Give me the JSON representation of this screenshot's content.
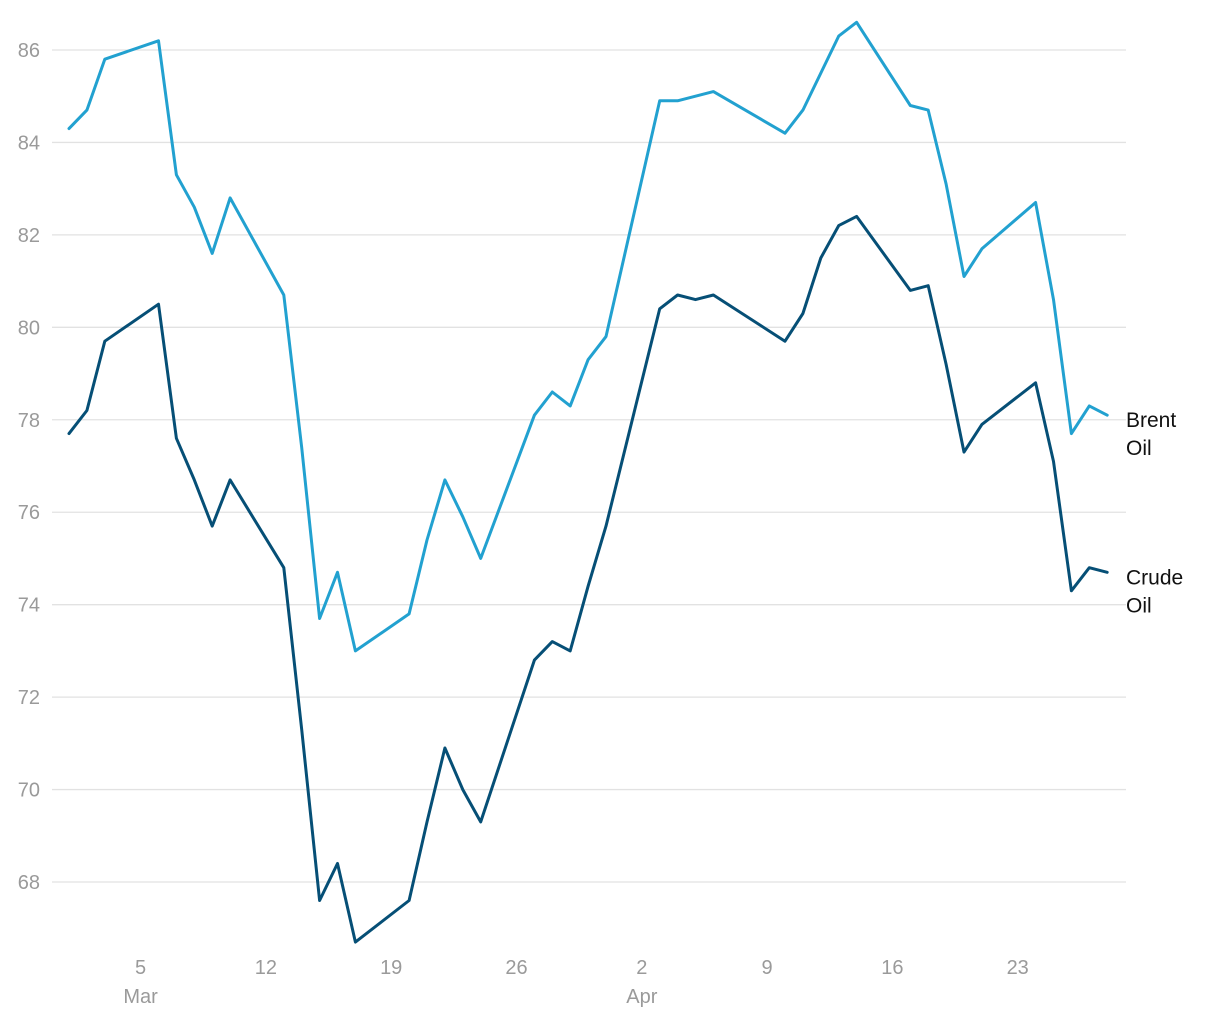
{
  "chart_data": {
    "type": "line",
    "title": "",
    "xlabel": "",
    "ylabel": "",
    "ylim": [
      66.5,
      87.0
    ],
    "y_ticks": [
      68,
      70,
      72,
      74,
      76,
      78,
      80,
      82,
      84,
      86
    ],
    "x_ticks": [
      {
        "date": "03-05",
        "label": "5",
        "sublabel": "Mar"
      },
      {
        "date": "03-12",
        "label": "12",
        "sublabel": ""
      },
      {
        "date": "03-19",
        "label": "19",
        "sublabel": ""
      },
      {
        "date": "03-26",
        "label": "26",
        "sublabel": ""
      },
      {
        "date": "04-02",
        "label": "2",
        "sublabel": "Apr"
      },
      {
        "date": "04-09",
        "label": "9",
        "sublabel": ""
      },
      {
        "date": "04-16",
        "label": "16",
        "sublabel": ""
      },
      {
        "date": "04-23",
        "label": "23",
        "sublabel": ""
      }
    ],
    "grid": true,
    "x": [
      "03-01",
      "03-02",
      "03-03",
      "03-06",
      "03-07",
      "03-08",
      "03-09",
      "03-10",
      "03-13",
      "03-14",
      "03-15",
      "03-16",
      "03-17",
      "03-20",
      "03-21",
      "03-22",
      "03-23",
      "03-24",
      "03-27",
      "03-28",
      "03-29",
      "03-30",
      "03-31",
      "04-03",
      "04-04",
      "04-05",
      "04-06",
      "04-10",
      "04-11",
      "04-12",
      "04-13",
      "04-14",
      "04-17",
      "04-18",
      "04-19",
      "04-20",
      "04-21",
      "04-24",
      "04-25",
      "04-26",
      "04-27",
      "04-28"
    ],
    "series": [
      {
        "name": "Brent Oil",
        "label_lines": [
          "Brent",
          "Oil"
        ],
        "color": "#22a1d0",
        "values": [
          84.3,
          84.7,
          85.8,
          86.2,
          83.3,
          82.6,
          81.6,
          82.8,
          80.7,
          77.4,
          73.7,
          74.7,
          73.0,
          73.8,
          75.4,
          76.7,
          75.9,
          75.0,
          78.1,
          78.6,
          78.3,
          79.3,
          79.8,
          84.9,
          84.9,
          85.0,
          85.1,
          84.2,
          84.7,
          85.5,
          86.3,
          86.6,
          84.8,
          84.7,
          83.1,
          81.1,
          81.7,
          82.7,
          80.6,
          77.7,
          78.3,
          78.1
        ]
      },
      {
        "name": "Crude Oil",
        "label_lines": [
          "Crude",
          "Oil"
        ],
        "color": "#064f76",
        "values": [
          77.7,
          78.2,
          79.7,
          80.5,
          77.6,
          76.7,
          75.7,
          76.7,
          74.8,
          71.3,
          67.6,
          68.4,
          66.7,
          67.6,
          69.3,
          70.9,
          70.0,
          69.3,
          72.8,
          73.2,
          73.0,
          74.4,
          75.7,
          80.4,
          80.7,
          80.6,
          80.7,
          79.7,
          80.3,
          81.5,
          82.2,
          82.4,
          80.8,
          80.9,
          79.2,
          77.3,
          77.9,
          78.8,
          77.1,
          74.3,
          74.8,
          74.7
        ]
      }
    ]
  }
}
